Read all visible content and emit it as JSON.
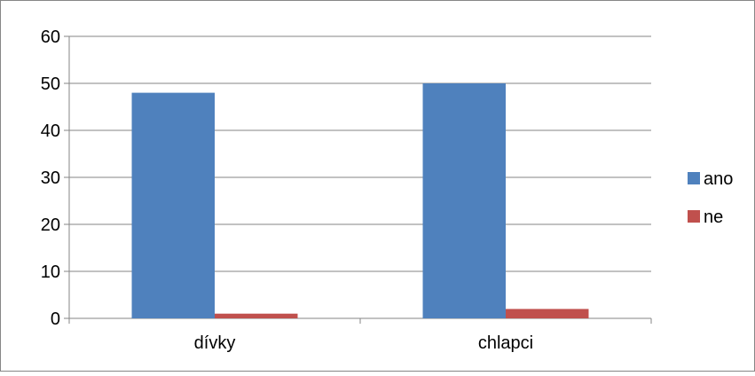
{
  "chart_data": {
    "type": "bar",
    "categories": [
      "dívky",
      "chlapci"
    ],
    "series": [
      {
        "name": "ano",
        "values": [
          48,
          50
        ],
        "color": "#4F81BD"
      },
      {
        "name": "ne",
        "values": [
          1,
          2
        ],
        "color": "#C0504D"
      }
    ],
    "title": "",
    "xlabel": "",
    "ylabel": "",
    "ylim": [
      0,
      60
    ],
    "yticks": [
      0,
      10,
      20,
      30,
      40,
      50,
      60
    ],
    "grid": true,
    "legend_position": "right"
  }
}
